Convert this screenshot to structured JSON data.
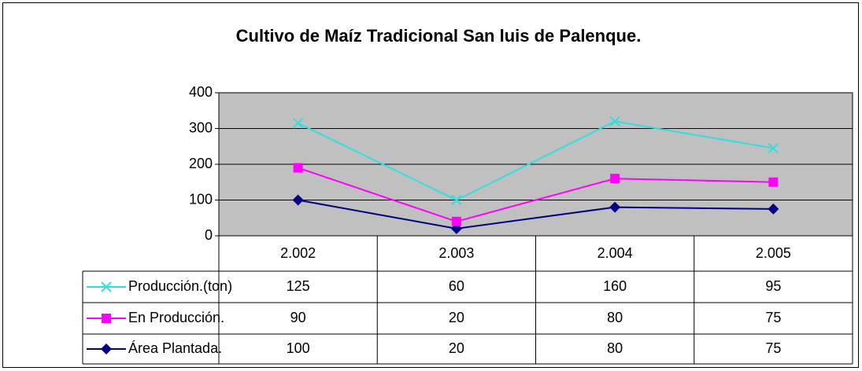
{
  "chart_data": {
    "type": "line",
    "stacked": true,
    "title": "Cultivo de Maíz Tradicional  San luis de Palenque.",
    "categories": [
      "2.002",
      "2.003",
      "2.004",
      "2.005"
    ],
    "series": [
      {
        "name": "Producción.(ton)",
        "color": "#33dddd",
        "marker": "x",
        "values": [
          125,
          60,
          160,
          95
        ]
      },
      {
        "name": "En Producción.",
        "color": "#ff00ff",
        "marker": "square",
        "values": [
          90,
          20,
          80,
          75
        ]
      },
      {
        "name": "Área Plantada.",
        "color": "#000080",
        "marker": "diamond",
        "values": [
          100,
          20,
          80,
          75
        ]
      }
    ],
    "ylim": [
      0,
      400
    ],
    "yticks": [
      0,
      100,
      200,
      300,
      400
    ],
    "grid": true
  }
}
